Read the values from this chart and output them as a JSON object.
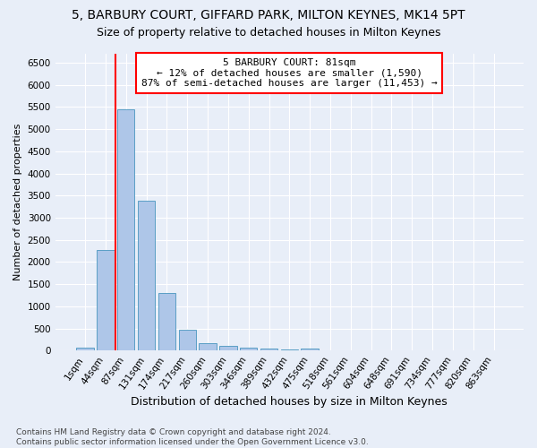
{
  "title1": "5, BARBURY COURT, GIFFARD PARK, MILTON KEYNES, MK14 5PT",
  "title2": "Size of property relative to detached houses in Milton Keynes",
  "xlabel": "Distribution of detached houses by size in Milton Keynes",
  "ylabel": "Number of detached properties",
  "footnote": "Contains HM Land Registry data © Crown copyright and database right 2024.\nContains public sector information licensed under the Open Government Licence v3.0.",
  "bar_labels": [
    "1sqm",
    "44sqm",
    "87sqm",
    "131sqm",
    "174sqm",
    "217sqm",
    "260sqm",
    "303sqm",
    "346sqm",
    "389sqm",
    "432sqm",
    "475sqm",
    "518sqm",
    "561sqm",
    "604sqm",
    "648sqm",
    "691sqm",
    "734sqm",
    "777sqm",
    "820sqm",
    "863sqm"
  ],
  "bar_values": [
    70,
    2280,
    5440,
    3390,
    1300,
    480,
    175,
    110,
    70,
    50,
    35,
    55,
    0,
    0,
    0,
    0,
    0,
    0,
    0,
    0,
    0
  ],
  "bar_color": "#aec6e8",
  "bar_edge_color": "#5a9fc5",
  "vline_x": 1.5,
  "vline_color": "red",
  "annotation_text": "5 BARBURY COURT: 81sqm\n← 12% of detached houses are smaller (1,590)\n87% of semi-detached houses are larger (11,453) →",
  "annotation_box_color": "white",
  "annotation_box_edge": "red",
  "ylim": [
    0,
    6700
  ],
  "yticks": [
    0,
    500,
    1000,
    1500,
    2000,
    2500,
    3000,
    3500,
    4000,
    4500,
    5000,
    5500,
    6000,
    6500
  ],
  "background_color": "#e8eef8",
  "plot_bg_color": "#e8eef8",
  "title1_fontsize": 10,
  "title2_fontsize": 9,
  "xlabel_fontsize": 9,
  "ylabel_fontsize": 8,
  "grid_color": "white",
  "tick_fontsize": 7.5,
  "footnote_fontsize": 6.5
}
